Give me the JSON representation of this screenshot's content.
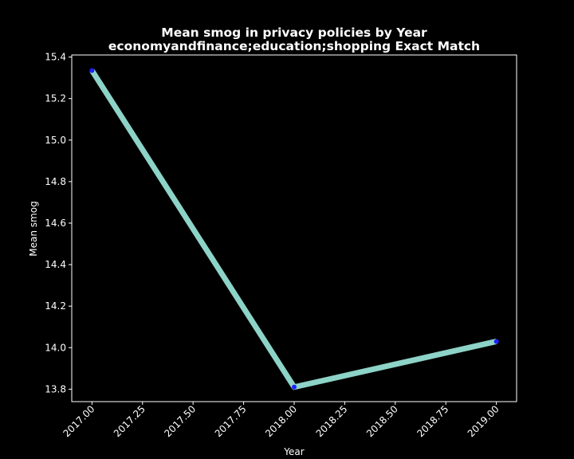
{
  "chart_data": {
    "type": "line",
    "title": "Mean smog in privacy policies by Year",
    "subtitle": "economyandfinance;education;shopping Exact Match",
    "xlabel": "Year",
    "ylabel": "Mean smog",
    "x": [
      2017,
      2018,
      2019
    ],
    "series": [
      {
        "values": [
          15.335,
          13.81,
          14.03
        ]
      }
    ],
    "xlim": [
      2016.9,
      2019.1
    ],
    "ylim": [
      13.74,
      15.41
    ],
    "x_ticks": [
      "2017.00",
      "2017.25",
      "2017.50",
      "2017.75",
      "2018.00",
      "2018.25",
      "2018.50",
      "2018.75",
      "2019.00"
    ],
    "y_ticks": [
      "13.8",
      "14.0",
      "14.2",
      "14.4",
      "14.6",
      "14.8",
      "15.0",
      "15.2",
      "15.4"
    ],
    "grid": false,
    "colors": {
      "background": "#000000",
      "line": "#8dd3c7",
      "marker": "#1f1fff",
      "axes": "#ffffff",
      "text": "#ffffff"
    }
  }
}
